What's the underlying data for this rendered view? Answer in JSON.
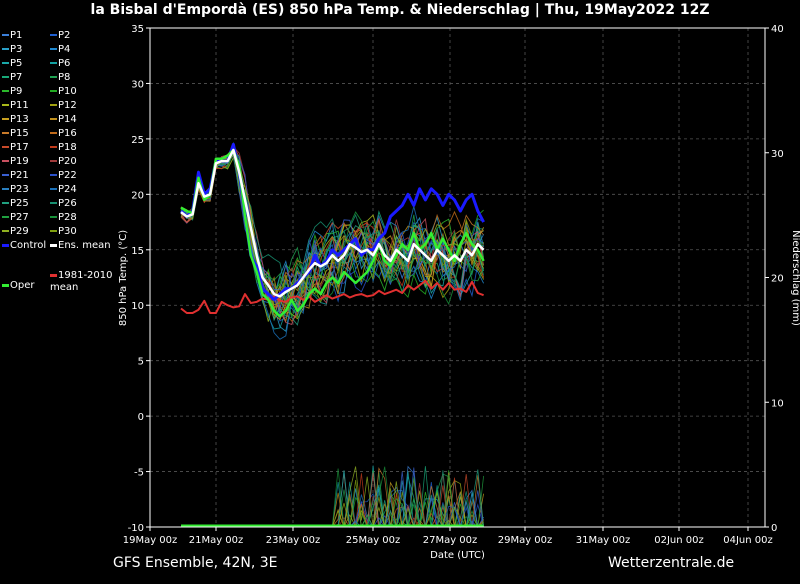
{
  "title": "la Bisbal d'Empordà  (ES)  850 hPa Temp. & Niederschlag | Thu, 19May2022 12Z",
  "footer": {
    "model": "GFS Ensemble, 42N, 3E",
    "site": "Wetterzentrale.de"
  },
  "colors": {
    "background": "#000000",
    "control": "#1a1aff",
    "ens_mean": "#ffffff",
    "clim_mean": "#e03030",
    "oper": "#33ee33"
  },
  "chart_data": {
    "type": "line",
    "title": "la Bisbal d'Empordà  (ES)  850 hPa Temp. & Niederschlag | Thu, 19May2022 12Z",
    "xlabel": "Date (UTC)",
    "ylabel": "850 hPa Temp. (°C)",
    "y2label": "Niederschlag (mm)",
    "ylim": [
      -10,
      35
    ],
    "y2lim": [
      0,
      40
    ],
    "yticks": [
      -10,
      -5,
      0,
      5,
      10,
      15,
      20,
      25,
      30,
      35
    ],
    "y2ticks": [
      0,
      10,
      20,
      30,
      40
    ],
    "x_ticks": [
      "19May 00z",
      "21May 00z",
      "23May 00z",
      "25May 00z",
      "27May 00z",
      "29May 00z",
      "31May 00z",
      "02Jun 00z",
      "04Jun 00z"
    ],
    "grid": true,
    "legend_position": "left",
    "legend_perturbation_labels": [
      "P1",
      "P2",
      "P3",
      "P4",
      "P5",
      "P6",
      "P7",
      "P8",
      "P9",
      "P10",
      "P11",
      "P12",
      "P13",
      "P14",
      "P15",
      "P16",
      "P17",
      "P18",
      "P19",
      "P20",
      "P21",
      "P22",
      "P23",
      "P24",
      "P25",
      "P26",
      "P27",
      "P28",
      "P29",
      "P30"
    ],
    "series": [
      {
        "name": "Control",
        "values": [
          18.5,
          18.0,
          18.5,
          22.0,
          20.0,
          20.5,
          23.0,
          23.0,
          23.0,
          24.5,
          22.0,
          18.0,
          14.5,
          13.5,
          11.5,
          11.0,
          10.5,
          11.0,
          11.5,
          11.5,
          12.0,
          12.5,
          13.0,
          14.5,
          13.5,
          14.0,
          15.0,
          14.5,
          15.0,
          15.5,
          16.0,
          14.5,
          15.0,
          15.0,
          16.0,
          16.5,
          18.0,
          18.5,
          19.0,
          20.0,
          19.0,
          20.5,
          19.5,
          20.5,
          20.0,
          19.0,
          20.0,
          19.5,
          18.5,
          19.5,
          20.0,
          18.5,
          17.5
        ]
      },
      {
        "name": "Ens. mean",
        "values": [
          18.4,
          18.0,
          18.2,
          21.0,
          19.8,
          20.0,
          22.8,
          23.0,
          23.0,
          24.0,
          22.0,
          19.5,
          17.0,
          14.5,
          12.5,
          11.8,
          11.0,
          10.8,
          11.2,
          11.5,
          11.8,
          12.5,
          13.2,
          13.8,
          13.5,
          13.8,
          14.5,
          14.0,
          14.5,
          15.5,
          15.2,
          14.8,
          15.0,
          14.5,
          15.5,
          14.5,
          14.0,
          15.0,
          14.5,
          14.0,
          15.5,
          15.0,
          14.5,
          14.0,
          15.0,
          14.5,
          14.0,
          14.5,
          14.0,
          15.0,
          14.5,
          15.5,
          15.0
        ]
      },
      {
        "name": "1981-2010 mean",
        "values": [
          9.7,
          9.3,
          9.3,
          9.6,
          10.4,
          9.3,
          9.3,
          10.3,
          10.0,
          9.8,
          9.9,
          11.0,
          10.2,
          10.3,
          10.6,
          10.5,
          10.8,
          10.4,
          10.3,
          10.7,
          10.8,
          10.5,
          10.8,
          10.3,
          10.6,
          10.9,
          10.6,
          10.8,
          11.0,
          10.7,
          10.9,
          11.0,
          10.8,
          10.9,
          11.3,
          11.0,
          11.2,
          11.4,
          11.1,
          11.8,
          11.4,
          11.8,
          12.2,
          11.5,
          12.0,
          11.4,
          12.0,
          11.4,
          11.5,
          11.2,
          12.1,
          11.1,
          10.9
        ]
      },
      {
        "name": "Oper",
        "values": [
          18.8,
          18.5,
          18.3,
          21.5,
          19.5,
          20.0,
          23.2,
          23.2,
          23.5,
          24.0,
          22.5,
          18.0,
          14.5,
          13.0,
          11.0,
          10.5,
          9.5,
          9.0,
          9.5,
          10.5,
          9.5,
          10.0,
          11.0,
          11.5,
          11.0,
          12.0,
          12.5,
          12.0,
          13.0,
          12.5,
          12.0,
          12.5,
          13.0,
          14.0,
          15.5,
          14.0,
          13.5,
          14.5,
          15.5,
          15.0,
          16.5,
          15.0,
          15.5,
          16.5,
          15.0,
          16.0,
          15.0,
          14.0,
          15.5,
          16.5,
          15.5,
          15.0,
          14.0
        ]
      }
    ]
  }
}
